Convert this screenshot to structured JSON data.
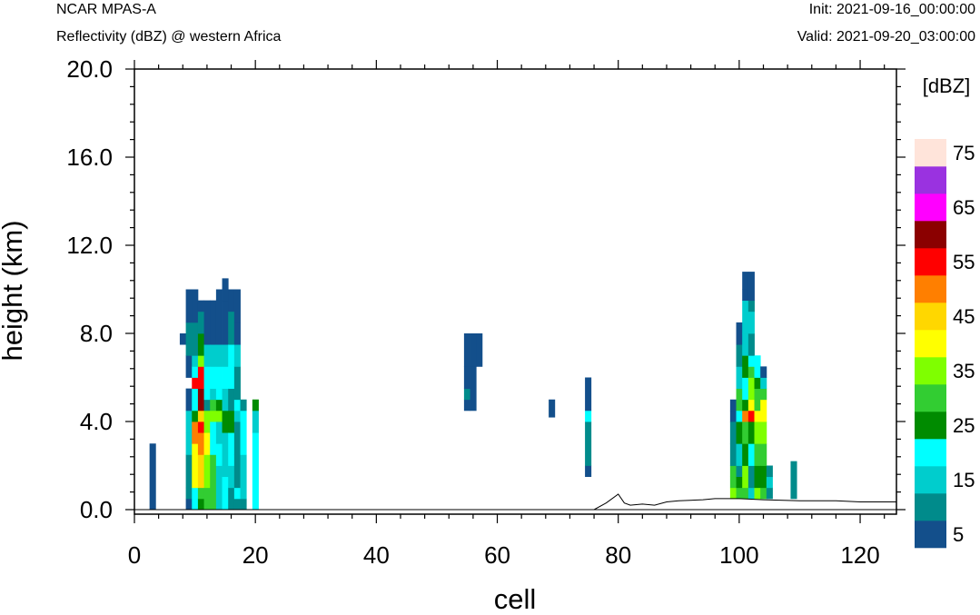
{
  "header": {
    "title": "NCAR MPAS-A",
    "subtitle": "Reflectivity (dBZ) @ western Africa",
    "init": "Init: 2021-09-16_00:00:00",
    "valid": "Valid: 2021-09-20_03:00:00"
  },
  "chart_data": {
    "type": "heatmap",
    "xlabel": "cell",
    "ylabel": "height (km)",
    "xlim": [
      0,
      126
    ],
    "ylim": [
      -0.3,
      20.0
    ],
    "x_ticks": [
      0,
      20,
      40,
      60,
      80,
      100,
      120
    ],
    "x_tick_labels": [
      "0",
      "20",
      "40",
      "60",
      "80",
      "100",
      "120"
    ],
    "y_ticks": [
      0,
      4,
      8,
      12,
      16,
      20
    ],
    "y_tick_labels": [
      "0.0",
      "4.0",
      "8.0",
      "12.0",
      "16.0",
      "20.0"
    ],
    "grid": false,
    "colorbar": {
      "label": "[dBZ]",
      "levels": [
        5,
        10,
        15,
        20,
        25,
        30,
        35,
        40,
        45,
        50,
        55,
        60,
        65,
        70,
        75
      ],
      "labels": [
        "5",
        "15",
        "25",
        "35",
        "45",
        "55",
        "65",
        "75"
      ],
      "colors": [
        "#134f8b",
        "#008b8b",
        "#00cdcd",
        "#00ffff",
        "#008b00",
        "#32cd32",
        "#7fff00",
        "#ffff00",
        "#ffd700",
        "#ff7f00",
        "#ff0000",
        "#8b0000",
        "#ff00ff",
        "#9a32e0",
        "#ffe4da"
      ]
    },
    "terrain": [
      [
        0,
        0
      ],
      [
        76,
        0
      ],
      [
        78,
        0.3
      ],
      [
        80,
        0.7
      ],
      [
        81,
        0.3
      ],
      [
        82,
        0.2
      ],
      [
        84,
        0.25
      ],
      [
        86,
        0.2
      ],
      [
        88,
        0.35
      ],
      [
        90,
        0.4
      ],
      [
        94,
        0.45
      ],
      [
        96,
        0.5
      ],
      [
        100,
        0.5
      ],
      [
        104,
        0.45
      ],
      [
        110,
        0.4
      ],
      [
        116,
        0.4
      ],
      [
        120,
        0.35
      ],
      [
        126,
        0.35
      ]
    ],
    "columns": [
      {
        "x": 3,
        "segs": [
          [
            0,
            3,
            5
          ]
        ]
      },
      {
        "x": 8,
        "segs": [
          [
            7.5,
            8,
            5
          ]
        ]
      },
      {
        "x": 9,
        "segs": [
          [
            0,
            0.5,
            5
          ],
          [
            0.5,
            1,
            10
          ],
          [
            1,
            2.5,
            10
          ],
          [
            2.5,
            3.5,
            15
          ],
          [
            3.5,
            4.5,
            15
          ],
          [
            4.5,
            5.5,
            5
          ],
          [
            6,
            7,
            5
          ],
          [
            7,
            8.5,
            10
          ],
          [
            8.5,
            10,
            5
          ]
        ]
      },
      {
        "x": 10,
        "segs": [
          [
            0,
            1,
            20
          ],
          [
            1,
            3,
            40
          ],
          [
            3,
            4,
            50
          ],
          [
            4,
            4.5,
            25
          ],
          [
            4.5,
            5.5,
            20
          ],
          [
            5.5,
            6,
            55
          ],
          [
            6,
            6.5,
            20
          ],
          [
            6.5,
            7,
            15
          ],
          [
            7,
            8.5,
            10
          ],
          [
            8.5,
            10,
            5
          ]
        ]
      },
      {
        "x": 11,
        "segs": [
          [
            0,
            0.5,
            25
          ],
          [
            0.5,
            1,
            30
          ],
          [
            1,
            2.5,
            45
          ],
          [
            2.5,
            3.5,
            50
          ],
          [
            3.5,
            4,
            55
          ],
          [
            4,
            4.5,
            45
          ],
          [
            4.5,
            5.5,
            60
          ],
          [
            5.5,
            6.5,
            55
          ],
          [
            6.5,
            7,
            35
          ],
          [
            7,
            8,
            25
          ],
          [
            8,
            9,
            10
          ],
          [
            9,
            9.5,
            5
          ]
        ]
      },
      {
        "x": 12,
        "segs": [
          [
            0,
            1,
            30
          ],
          [
            1,
            2.5,
            35
          ],
          [
            2.5,
            3.5,
            40
          ],
          [
            3.5,
            4.5,
            35
          ],
          [
            4.5,
            5,
            10
          ],
          [
            5,
            6.5,
            20
          ],
          [
            6.5,
            7.5,
            15
          ],
          [
            7.5,
            9.5,
            5
          ]
        ]
      },
      {
        "x": 13,
        "segs": [
          [
            0,
            1,
            30
          ],
          [
            1,
            2.5,
            30
          ],
          [
            2.5,
            4,
            20
          ],
          [
            4,
            4.5,
            35
          ],
          [
            4.5,
            5,
            30
          ],
          [
            5,
            5.5,
            15
          ],
          [
            5.5,
            6.5,
            20
          ],
          [
            6.5,
            7.5,
            15
          ],
          [
            7.5,
            9.5,
            5
          ]
        ]
      },
      {
        "x": 14,
        "segs": [
          [
            0,
            2,
            15
          ],
          [
            2,
            3,
            20
          ],
          [
            3,
            4,
            15
          ],
          [
            4,
            4.5,
            35
          ],
          [
            4.5,
            5,
            25
          ],
          [
            5,
            6.5,
            20
          ],
          [
            6.5,
            7.5,
            15
          ],
          [
            7.5,
            10,
            5
          ]
        ]
      },
      {
        "x": 15,
        "segs": [
          [
            0,
            1.5,
            20
          ],
          [
            1.5,
            3.5,
            15
          ],
          [
            3.5,
            4.5,
            25
          ],
          [
            4.5,
            5.5,
            15
          ],
          [
            5.5,
            6.5,
            20
          ],
          [
            6.5,
            7.5,
            15
          ],
          [
            7.5,
            9.5,
            5
          ],
          [
            9.5,
            10.5,
            5
          ]
        ]
      },
      {
        "x": 16,
        "segs": [
          [
            0,
            1,
            10
          ],
          [
            1,
            2,
            15
          ],
          [
            2,
            3.5,
            20
          ],
          [
            3.5,
            4.5,
            25
          ],
          [
            4.5,
            5.5,
            10
          ],
          [
            5.5,
            7.5,
            20
          ],
          [
            7.5,
            9,
            10
          ],
          [
            9,
            10,
            5
          ]
        ]
      },
      {
        "x": 17,
        "segs": [
          [
            0,
            0.5,
            10
          ],
          [
            0.5,
            1,
            20
          ],
          [
            1,
            2.5,
            10
          ],
          [
            2.5,
            4,
            10
          ],
          [
            4,
            4.5,
            15
          ],
          [
            4.5,
            5,
            20
          ],
          [
            5,
            6.5,
            10
          ],
          [
            6.5,
            7.5,
            15
          ],
          [
            7.5,
            8.5,
            5
          ],
          [
            8.5,
            10,
            5
          ]
        ]
      },
      {
        "x": 18,
        "segs": [
          [
            0,
            0.5,
            10
          ],
          [
            0.5,
            2.5,
            15
          ],
          [
            2.5,
            4.5,
            20
          ],
          [
            4.5,
            5,
            10
          ]
        ]
      },
      {
        "x": 20,
        "segs": [
          [
            0,
            3.5,
            20
          ],
          [
            3.5,
            4.5,
            15
          ],
          [
            4.5,
            5,
            25
          ]
        ]
      },
      {
        "x": 55,
        "segs": [
          [
            4.5,
            5,
            5
          ],
          [
            5,
            5.5,
            10
          ],
          [
            5.5,
            6.5,
            5
          ],
          [
            6.5,
            8,
            5
          ]
        ]
      },
      {
        "x": 56,
        "segs": [
          [
            4.5,
            6.5,
            5
          ],
          [
            6.5,
            8,
            5
          ]
        ]
      },
      {
        "x": 57,
        "segs": [
          [
            6.5,
            8,
            5
          ]
        ]
      },
      {
        "x": 69,
        "segs": [
          [
            4.2,
            5,
            5
          ]
        ]
      },
      {
        "x": 75,
        "segs": [
          [
            1.5,
            2,
            5
          ],
          [
            2,
            4,
            10
          ],
          [
            4,
            4.5,
            20
          ],
          [
            4.5,
            6,
            5
          ]
        ]
      },
      {
        "x": 99,
        "segs": [
          [
            0.5,
            1,
            35
          ],
          [
            1,
            1.5,
            30
          ],
          [
            1.5,
            2,
            30
          ],
          [
            2,
            3,
            10
          ],
          [
            3,
            4,
            10
          ],
          [
            4,
            4.5,
            5
          ],
          [
            4.5,
            5,
            5
          ]
        ]
      },
      {
        "x": 100,
        "segs": [
          [
            0.5,
            1,
            30
          ],
          [
            1,
            1.5,
            25
          ],
          [
            1.5,
            2,
            10
          ],
          [
            2,
            3,
            15
          ],
          [
            3,
            4,
            25
          ],
          [
            4,
            4.5,
            20
          ],
          [
            4.5,
            5.5,
            30
          ],
          [
            5.5,
            6.5,
            15
          ],
          [
            6.5,
            7.5,
            10
          ],
          [
            7.5,
            8.5,
            5
          ]
        ]
      },
      {
        "x": 101,
        "segs": [
          [
            0.5,
            1,
            30
          ],
          [
            1,
            2,
            35
          ],
          [
            2,
            3,
            25
          ],
          [
            3,
            4,
            30
          ],
          [
            4,
            4.5,
            50
          ],
          [
            4.5,
            5,
            25
          ],
          [
            5,
            6,
            20
          ],
          [
            6,
            7,
            25
          ],
          [
            7,
            8,
            15
          ],
          [
            8,
            9.5,
            15
          ],
          [
            9.5,
            10,
            5
          ],
          [
            10,
            10.8,
            5
          ]
        ]
      },
      {
        "x": 102,
        "segs": [
          [
            0.5,
            1,
            15
          ],
          [
            1,
            2,
            10
          ],
          [
            2,
            3,
            20
          ],
          [
            3,
            4,
            25
          ],
          [
            4,
            4.5,
            55
          ],
          [
            4.5,
            5,
            40
          ],
          [
            5,
            6,
            35
          ],
          [
            6,
            6.5,
            30
          ],
          [
            6.5,
            7,
            20
          ],
          [
            7,
            8,
            10
          ],
          [
            8,
            9,
            15
          ],
          [
            9,
            9.5,
            10
          ],
          [
            9.5,
            10.8,
            5
          ]
        ]
      },
      {
        "x": 103,
        "segs": [
          [
            0.5,
            1,
            35
          ],
          [
            1,
            2,
            25
          ],
          [
            2,
            3,
            30
          ],
          [
            3,
            4,
            35
          ],
          [
            4,
            4.5,
            40
          ],
          [
            4.5,
            5.5,
            30
          ],
          [
            5.5,
            6,
            25
          ],
          [
            6,
            7,
            20
          ]
        ]
      },
      {
        "x": 104,
        "segs": [
          [
            0.5,
            1,
            30
          ],
          [
            1,
            2,
            25
          ],
          [
            2,
            3,
            30
          ],
          [
            3,
            4,
            35
          ],
          [
            4,
            5,
            40
          ],
          [
            5,
            5.5,
            30
          ],
          [
            5.5,
            6,
            15
          ],
          [
            6,
            6.5,
            5
          ]
        ]
      },
      {
        "x": 105,
        "segs": [
          [
            0.5,
            1,
            10
          ],
          [
            1,
            1.5,
            15
          ],
          [
            1.5,
            2,
            10
          ]
        ]
      },
      {
        "x": 109,
        "segs": [
          [
            0.5,
            2.2,
            10
          ]
        ]
      }
    ]
  }
}
